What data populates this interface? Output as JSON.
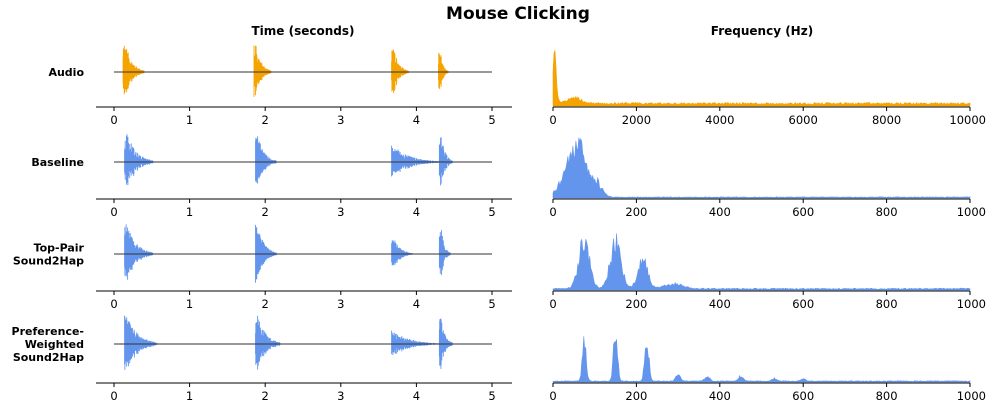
{
  "title": "Mouse Clicking",
  "colors": {
    "audio": "#F5A300",
    "haptic": "#6495ED",
    "zero_line": "#333333",
    "axis": "#000000"
  },
  "chart_data": {
    "type": "line",
    "title": "Mouse Clicking",
    "columns": [
      {
        "key": "time",
        "xlabel": "Time (seconds)",
        "xlim": [
          0,
          5
        ],
        "x_ticks": [
          "0",
          "1",
          "2",
          "3",
          "4",
          "5"
        ]
      },
      {
        "key": "freq",
        "xlabel": "Frequency (Hz)"
      }
    ],
    "rows": [
      {
        "label_lines": [
          "Audio"
        ],
        "color": "#F5A300",
        "time": {
          "xlim": [
            0,
            5
          ],
          "bursts": [
            {
              "t": 0.15,
              "amp": 1.0,
              "width": 0.25
            },
            {
              "t": 1.88,
              "amp": 0.9,
              "width": 0.2
            },
            {
              "t": 3.7,
              "amp": 0.8,
              "width": 0.2
            },
            {
              "t": 4.32,
              "amp": 0.7,
              "width": 0.1
            }
          ]
        },
        "freq": {
          "xlim": [
            0,
            10000
          ],
          "x_ticks": [
            "0",
            "2000",
            "4000",
            "6000",
            "8000",
            "10000"
          ],
          "peaks": [
            {
              "f": 30,
              "amp": 1.0,
              "width": 80
            },
            {
              "f": 500,
              "amp": 0.12,
              "width": 300
            }
          ],
          "floor": 0.06
        }
      },
      {
        "label_lines": [
          "Baseline"
        ],
        "color": "#6495ED",
        "time": {
          "xlim": [
            0,
            5
          ],
          "bursts": [
            {
              "t": 0.17,
              "amp": 1.0,
              "width": 0.35
            },
            {
              "t": 1.9,
              "amp": 0.9,
              "width": 0.25
            },
            {
              "t": 3.7,
              "amp": 0.55,
              "width": 0.6
            },
            {
              "t": 4.33,
              "amp": 0.9,
              "width": 0.15
            }
          ]
        },
        "freq": {
          "xlim": [
            0,
            1000
          ],
          "x_ticks": [
            "0",
            "200",
            "400",
            "600",
            "800",
            "1000"
          ],
          "peaks": [
            {
              "f": 30,
              "amp": 0.4,
              "width": 30
            },
            {
              "f": 60,
              "amp": 1.0,
              "width": 28
            },
            {
              "f": 100,
              "amp": 0.35,
              "width": 25
            }
          ],
          "floor": 0.02
        }
      },
      {
        "label_lines": [
          "Top-Pair",
          "Sound2Hap"
        ],
        "color": "#6495ED",
        "time": {
          "xlim": [
            0,
            5
          ],
          "bursts": [
            {
              "t": 0.17,
              "amp": 1.0,
              "width": 0.35
            },
            {
              "t": 1.9,
              "amp": 1.0,
              "width": 0.25
            },
            {
              "t": 3.7,
              "amp": 0.55,
              "width": 0.25
            },
            {
              "t": 4.33,
              "amp": 0.85,
              "width": 0.12
            }
          ]
        },
        "freq": {
          "xlim": [
            0,
            1000
          ],
          "x_ticks": [
            "0",
            "200",
            "400",
            "600",
            "800",
            "1000"
          ],
          "peaks": [
            {
              "f": 75,
              "amp": 1.0,
              "width": 22
            },
            {
              "f": 150,
              "amp": 1.0,
              "width": 22
            },
            {
              "f": 215,
              "amp": 0.6,
              "width": 20
            },
            {
              "f": 290,
              "amp": 0.1,
              "width": 40
            }
          ],
          "floor": 0.03
        }
      },
      {
        "label_lines": [
          "Preference-",
          "Weighted",
          "Sound2Hap"
        ],
        "color": "#6495ED",
        "time": {
          "xlim": [
            0,
            5
          ],
          "bursts": [
            {
              "t": 0.17,
              "amp": 1.0,
              "width": 0.4
            },
            {
              "t": 1.9,
              "amp": 1.0,
              "width": 0.3
            },
            {
              "t": 3.7,
              "amp": 0.45,
              "width": 0.6
            },
            {
              "t": 4.33,
              "amp": 0.85,
              "width": 0.15
            }
          ]
        },
        "freq": {
          "xlim": [
            0,
            1000
          ],
          "x_ticks": [
            "0",
            "200",
            "400",
            "600",
            "800",
            "1000"
          ],
          "peaks": [
            {
              "f": 75,
              "amp": 0.75,
              "width": 8
            },
            {
              "f": 150,
              "amp": 1.0,
              "width": 8
            },
            {
              "f": 225,
              "amp": 0.9,
              "width": 8
            },
            {
              "f": 300,
              "amp": 0.12,
              "width": 10
            },
            {
              "f": 370,
              "amp": 0.1,
              "width": 10
            },
            {
              "f": 450,
              "amp": 0.1,
              "width": 10
            },
            {
              "f": 530,
              "amp": 0.06,
              "width": 10
            },
            {
              "f": 600,
              "amp": 0.05,
              "width": 10
            }
          ],
          "floor": 0.02
        }
      }
    ]
  }
}
